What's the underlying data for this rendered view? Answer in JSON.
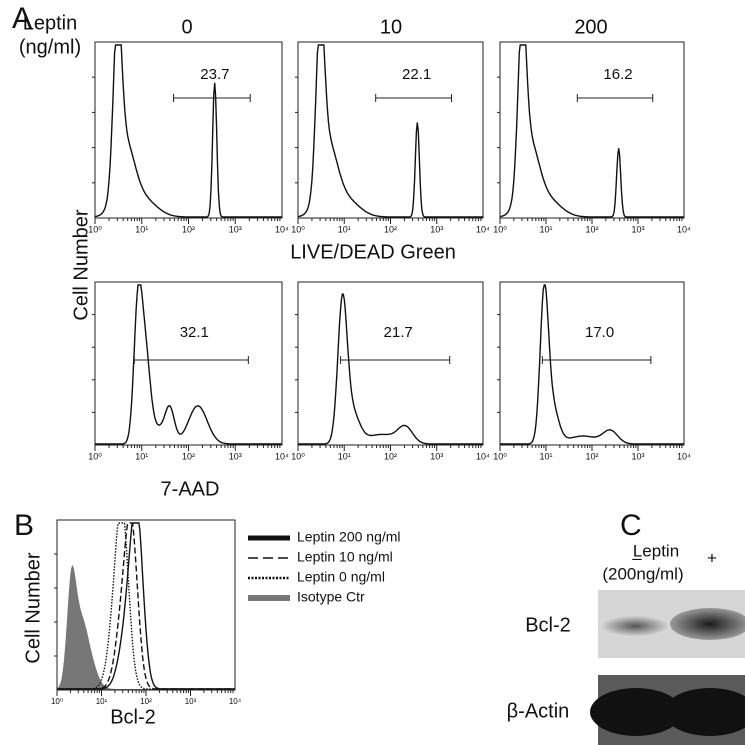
{
  "panel_a": {
    "label": "A",
    "leptin_label": "Leptin",
    "unit_label": "(ng/ml)",
    "doses": [
      "0",
      "10",
      "200"
    ],
    "y_axis_label": "Cell Number",
    "row_labels": [
      "LIVE/DEAD Green",
      "7-AAD"
    ],
    "gates": [
      [
        "23.7",
        "22.1",
        "16.2"
      ],
      [
        "32.1",
        "21.7",
        "17.0"
      ]
    ],
    "x_tick_labels": [
      "10⁰",
      "10¹",
      "10²",
      "10³",
      "10⁴"
    ]
  },
  "panel_b": {
    "label": "B",
    "y_axis_label": "Cell Number",
    "x_axis_label": "Bcl-2",
    "legend": [
      "Leptin 200 ng/ml",
      "Leptin 10 ng/ml",
      "Leptin 0 ng/ml",
      "Isotype Ctr"
    ]
  },
  "panel_c": {
    "label": "C",
    "treatment_label": "Leptin",
    "treatment_unit": "(200ng/ml)",
    "lanes": [
      "–",
      "+"
    ],
    "bands": [
      "Bcl-2",
      "β-Actin"
    ]
  }
}
